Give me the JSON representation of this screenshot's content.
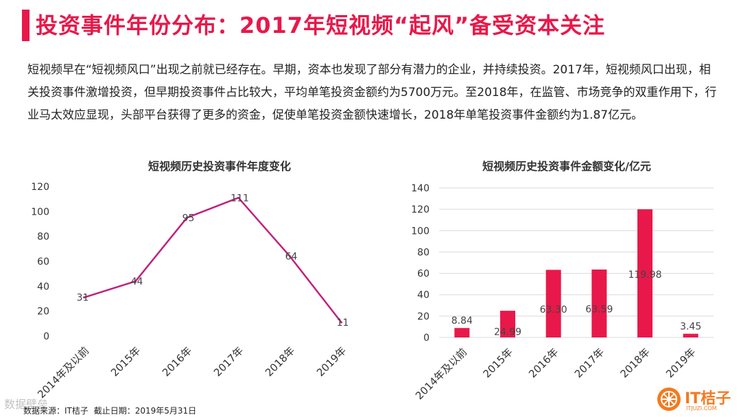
{
  "title": "投资事件年份分布：2017年短视频“起风”备受资本关注",
  "intro": "短视频早在“短视频风口”出现之前就已经存在。早期，资本也发现了部分有潜力的企业，并持续投资。2017年，短视频风口出现，相关投资事件激增投资，但早期投资事件占比较大，平均单笔投资金额约为5700万元。至2018年，在监管、市场竞争的双重作用下，行业马太效应显现，头部平台获得了更多的资金，促使单笔投资金额快速增长，2018年单笔投资事件金额约为1.87亿元。",
  "colors": {
    "accent": "#e8184a",
    "line": "#c0207c",
    "bar": "#e8184a",
    "logo": "#f47a20"
  },
  "footer": {
    "source_label": "数据来源：IT桔子",
    "date_label": "截止日期：2019年5月31日"
  },
  "watermark": "数据壁垒",
  "logo": {
    "name": "IT桔子",
    "url": "ITJUZI.COM",
    "icon": "orange-slice-icon"
  },
  "chart_data": [
    {
      "type": "line",
      "title": "短视频历史投资事件年度变化",
      "categories": [
        "2014年及以前",
        "2015年",
        "2016年",
        "2017年",
        "2018年",
        "2019年"
      ],
      "values": [
        31,
        44,
        95,
        111,
        64,
        11
      ],
      "labels": [
        "31",
        "44",
        "95",
        "111",
        "64",
        "11"
      ],
      "yticks": [
        0,
        20,
        40,
        60,
        80,
        100,
        120
      ],
      "ylim": [
        0,
        120
      ],
      "grid": false,
      "xlabel": "",
      "ylabel": ""
    },
    {
      "type": "bar",
      "title": "短视频历史投资事件金额变化/亿元",
      "categories": [
        "2014年及以前",
        "2015年",
        "2016年",
        "2017年",
        "2018年",
        "2019年"
      ],
      "values": [
        8.84,
        24.99,
        63.3,
        63.59,
        119.98,
        3.45
      ],
      "labels": [
        "8.84",
        "24.99",
        "63.30",
        "63.59",
        "119.98",
        "3.45"
      ],
      "yticks": [
        0,
        20,
        40,
        60,
        80,
        100,
        120,
        140
      ],
      "ylim": [
        0,
        140
      ],
      "grid": true,
      "xlabel": "",
      "ylabel": ""
    }
  ]
}
